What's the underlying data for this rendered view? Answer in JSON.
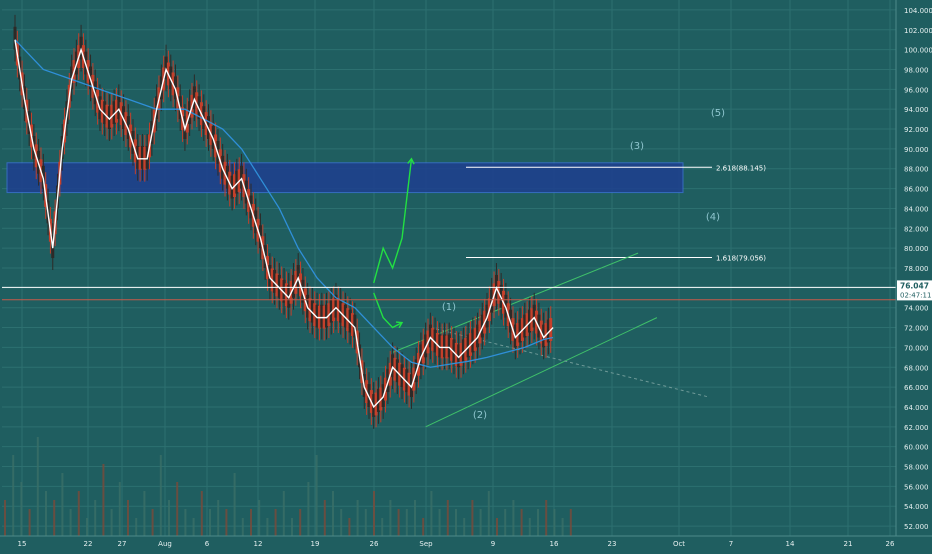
{
  "colors": {
    "background": "#1f5e60",
    "grid": "#2d7070",
    "price_line": "#ffffff",
    "moving_average": "#2f8fd8",
    "fib_zone": "#1e3f8f",
    "projection": "#22e042",
    "channel": "#3fc06a",
    "candle_up": "#2d2a27",
    "candle_down": "#c4402b",
    "current_price_bg": "#ffffff",
    "wave_label": "#8fc6cf"
  },
  "chart_data": {
    "type": "line",
    "title": "",
    "xlabel": "",
    "ylabel": "",
    "ylim": [
      51,
      105
    ],
    "y_ticks": [
      "104.000",
      "102.000",
      "100.000",
      "98.000",
      "96.000",
      "94.000",
      "92.000",
      "90.000",
      "88.000",
      "86.000",
      "84.000",
      "82.000",
      "80.000",
      "78.000",
      "76.000",
      "74.000",
      "72.000",
      "70.000",
      "68.000",
      "66.000",
      "64.000",
      "62.000",
      "60.000",
      "58.000",
      "56.000",
      "54.000",
      "52.000"
    ],
    "x_ticks": [
      "15",
      "22",
      "27",
      "Aug",
      "6",
      "12",
      "19",
      "26",
      "Sep",
      "9",
      "16",
      "23",
      "Oct",
      "7",
      "14",
      "21",
      "26"
    ],
    "current_price": "76.047",
    "countdown": "02:47:11",
    "fib_levels": [
      {
        "label": "2.618(88.145)",
        "value": 88.145
      },
      {
        "label": "1.618(79.056)",
        "value": 79.056
      }
    ],
    "wave_labels": [
      "(1)",
      "(2)",
      "(3)",
      "(4)",
      "(5)"
    ],
    "series": [
      {
        "type": "price-line",
        "x": [
          0,
          2,
          4,
          6,
          8,
          10,
          12,
          14,
          16,
          18,
          20,
          22,
          24,
          26,
          28,
          30,
          32,
          34,
          36,
          38,
          40,
          42,
          44,
          46,
          48,
          50,
          52,
          54,
          56,
          58,
          60,
          62,
          64,
          66,
          68,
          70,
          72,
          74,
          76,
          78,
          80,
          82,
          84,
          86,
          88,
          90,
          92,
          94,
          96,
          98,
          100,
          102,
          104,
          106,
          108,
          110,
          112,
          114
        ],
        "values": [
          101,
          95,
          90,
          87,
          80,
          90,
          97,
          100,
          97,
          94,
          93,
          94,
          92,
          89,
          89,
          94,
          98,
          96,
          92,
          95,
          93,
          91,
          88,
          86,
          87,
          84,
          81,
          77,
          76,
          75,
          77,
          74,
          73,
          73,
          74,
          73,
          72,
          66,
          64,
          65,
          68,
          67,
          66,
          69,
          71,
          70,
          70,
          69,
          70,
          71,
          73,
          76,
          74,
          71,
          72,
          73,
          71,
          72
        ]
      },
      {
        "type": "moving-average",
        "x": [
          0,
          6,
          12,
          18,
          24,
          30,
          36,
          40,
          44,
          48,
          52,
          56,
          60,
          64,
          68,
          72,
          76,
          80,
          84,
          88,
          92,
          96,
          100,
          104,
          108,
          112,
          114
        ],
        "values": [
          101,
          98,
          97,
          96,
          95,
          94,
          94,
          93,
          92,
          90,
          87,
          84,
          80,
          77,
          75,
          74,
          72,
          70,
          68.5,
          68,
          68.3,
          68.6,
          69,
          69.5,
          70,
          70.8,
          71
        ]
      }
    ],
    "volume_values": [
      4,
      9,
      6,
      3,
      11,
      5,
      4,
      7,
      3,
      5,
      2,
      4,
      8,
      3,
      6,
      4,
      2,
      5,
      3,
      9,
      4,
      6,
      3,
      2,
      5,
      3,
      4,
      3,
      7,
      2,
      3,
      4,
      2,
      3,
      5,
      2,
      3,
      6,
      9,
      4,
      5,
      3,
      2,
      4,
      3,
      5,
      2,
      4,
      3,
      3,
      4,
      2,
      5,
      3,
      4,
      3,
      2,
      4,
      3,
      5,
      2,
      3,
      4,
      3,
      2,
      3,
      4,
      3,
      2,
      3
    ],
    "projections": [
      {
        "name": "wave-3-path",
        "points": [
          [
            76,
            76.5
          ],
          [
            78,
            80
          ],
          [
            80,
            78
          ],
          [
            82,
            81
          ],
          [
            84,
            89
          ]
        ]
      },
      {
        "name": "wave-4-path",
        "points": [
          [
            76,
            75.5
          ],
          [
            78,
            73
          ],
          [
            80,
            72
          ],
          [
            82,
            72.5
          ]
        ]
      }
    ]
  }
}
